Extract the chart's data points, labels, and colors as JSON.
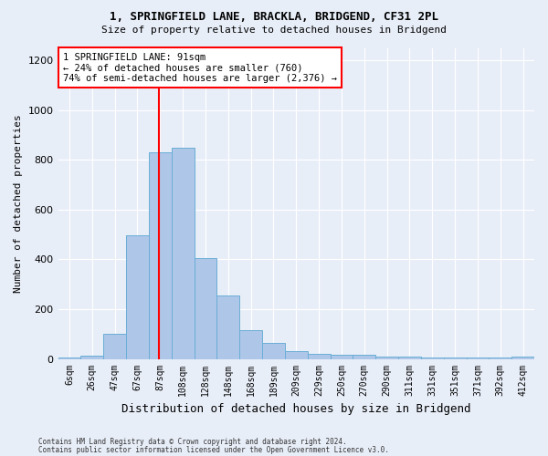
{
  "title1": "1, SPRINGFIELD LANE, BRACKLA, BRIDGEND, CF31 2PL",
  "title2": "Size of property relative to detached houses in Bridgend",
  "xlabel": "Distribution of detached houses by size in Bridgend",
  "ylabel": "Number of detached properties",
  "bin_labels": [
    "6sqm",
    "26sqm",
    "47sqm",
    "67sqm",
    "87sqm",
    "108sqm",
    "128sqm",
    "148sqm",
    "168sqm",
    "189sqm",
    "209sqm",
    "229sqm",
    "250sqm",
    "270sqm",
    "290sqm",
    "311sqm",
    "331sqm",
    "351sqm",
    "371sqm",
    "392sqm",
    "412sqm"
  ],
  "bar_heights": [
    6,
    13,
    100,
    495,
    830,
    850,
    405,
    255,
    115,
    65,
    30,
    20,
    15,
    15,
    10,
    10,
    5,
    5,
    5,
    5,
    10
  ],
  "bar_color": "#aec6e8",
  "bar_edge_color": "#6aaed6",
  "vline_x": 3.95,
  "vline_color": "red",
  "annotation_text": "1 SPRINGFIELD LANE: 91sqm\n← 24% of detached houses are smaller (760)\n74% of semi-detached houses are larger (2,376) →",
  "annotation_box_color": "white",
  "annotation_box_edge": "red",
  "ylim": [
    0,
    1250
  ],
  "yticks": [
    0,
    200,
    400,
    600,
    800,
    1000,
    1200
  ],
  "footnote1": "Contains HM Land Registry data © Crown copyright and database right 2024.",
  "footnote2": "Contains public sector information licensed under the Open Government Licence v3.0.",
  "bg_color": "#e8eef8",
  "plot_bg_color": "#e8eef8"
}
